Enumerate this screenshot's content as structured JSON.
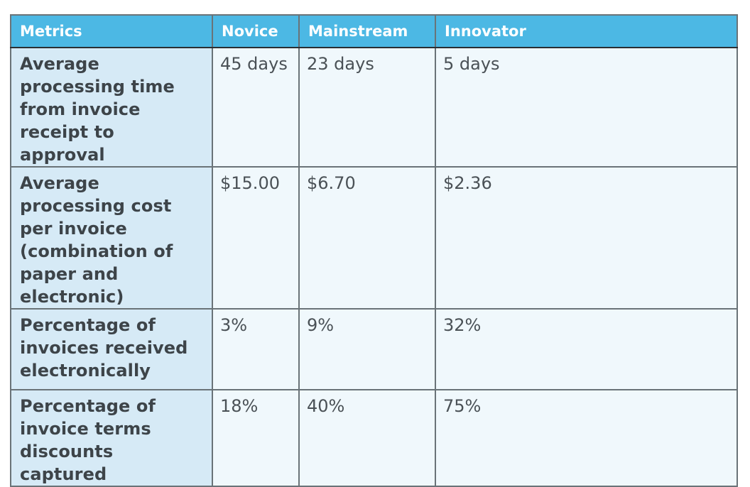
{
  "table": {
    "headers": [
      "Metrics",
      "Novice",
      "Mainstream",
      "Innovator"
    ],
    "rows": [
      {
        "metric": "Average processing time from invoice receipt to approval",
        "values": [
          "45 days",
          "23 days",
          "5 days"
        ]
      },
      {
        "metric": "Average processing cost per invoice (combination of paper and electronic)",
        "values": [
          "$15.00",
          "$6.70",
          "$2.36"
        ]
      },
      {
        "metric": "Percentage of invoices received electronically",
        "values": [
          "3%",
          "9%",
          "32%"
        ]
      },
      {
        "metric": "Percentage of invoice terms discounts captured",
        "values": [
          "18%",
          "40%",
          "75%"
        ]
      }
    ]
  },
  "colors": {
    "header_bg": "#4cb8e4",
    "metric_bg": "#d6eaf6",
    "cell_bg": "#f0f8fc",
    "border": "#6a7378"
  }
}
